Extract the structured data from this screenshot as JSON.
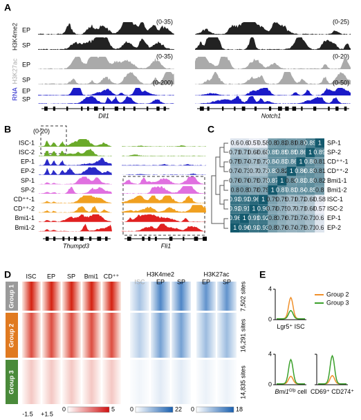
{
  "panels": [
    "A",
    "B",
    "C",
    "D",
    "E"
  ],
  "A": {
    "marks": [
      "H3K4me2",
      "H3K27ac",
      "RNA"
    ],
    "rows": [
      "EP",
      "SP"
    ],
    "ranges_left": [
      "(0-35)",
      "(0-35)",
      "(0-200)"
    ],
    "ranges_right": [
      "(0-25)",
      "(0-20)",
      "(0-50)"
    ],
    "colors": [
      "#222222",
      "#aaaaaa",
      "#1a1ac8"
    ],
    "genes": [
      "Dll1",
      "Notch1"
    ]
  },
  "B": {
    "range": "(0-20)",
    "samples": [
      "ISC-1",
      "ISC-2",
      "EP-1",
      "EP-2",
      "SP-1",
      "SP-2",
      "CD⁺⁺-1",
      "CD⁺⁺-2",
      "Bmi1-1",
      "Bmi1-2"
    ],
    "colors": [
      "#6aaa2a",
      "#6aaa2a",
      "#2a2ac8",
      "#2a2ac8",
      "#e070e0",
      "#e070e0",
      "#f0a020",
      "#f0a020",
      "#e02020",
      "#e02020"
    ],
    "genes": [
      "Thumpd3",
      "Fli1"
    ]
  },
  "C": {
    "labels": [
      "SP-1",
      "SP-2",
      "CD⁺⁺-1",
      "CD⁺⁺-2",
      "Bmi1-1",
      "Bmi1-2",
      "ISC-1",
      "ISC-2",
      "EP-1",
      "EP-2"
    ],
    "matrix": [
      [
        0.6,
        0.6,
        0.57,
        0.58,
        0.8,
        0.82,
        0.81,
        0.81,
        0.89,
        1
      ],
      [
        0.71,
        0.71,
        0.68,
        0.68,
        0.85,
        0.85,
        0.85,
        0.86,
        1,
        0.89
      ],
      [
        0.75,
        0.74,
        0.71,
        0.72,
        0.84,
        0.83,
        0.86,
        1,
        0.86,
        0.81
      ],
      [
        0.74,
        0.73,
        0.7,
        0.71,
        0.83,
        0.82,
        1,
        0.86,
        0.85,
        0.81
      ],
      [
        0.76,
        0.76,
        0.75,
        0.75,
        0.87,
        1,
        0.82,
        0.83,
        0.85,
        0.82
      ],
      [
        0.8,
        0.8,
        0.78,
        0.79,
        1,
        0.87,
        0.83,
        0.84,
        0.85,
        0.8
      ],
      [
        0.93,
        0.93,
        0.96,
        1,
        0.79,
        0.75,
        0.71,
        0.72,
        0.68,
        0.58
      ],
      [
        0.92,
        0.91,
        1,
        0.96,
        0.78,
        0.75,
        0.7,
        0.71,
        0.68,
        0.57
      ],
      [
        0.96,
        1,
        0.91,
        0.92,
        0.8,
        0.76,
        0.73,
        0.74,
        0.71,
        0.6
      ],
      [
        1,
        0.96,
        0.92,
        0.93,
        0.8,
        0.76,
        0.74,
        0.75,
        0.71,
        0.6
      ]
    ]
  },
  "D": {
    "columns": [
      "ISC",
      "EP",
      "SP",
      "Bmi1",
      "CD⁺⁺"
    ],
    "groups": [
      "Group 1",
      "Group 2",
      "Group 3"
    ],
    "group_colors": [
      "#9a9a9a",
      "#e07a20",
      "#4a8a3a"
    ],
    "sites": [
      "7,502 sites",
      "16,291 sites",
      "14,835 sites"
    ],
    "k4": {
      "title": "H3K4me2",
      "columns": [
        "ISC",
        "EP",
        "SP"
      ]
    },
    "k27": {
      "title": "H3K27ac",
      "columns": [
        "EP",
        "SP"
      ]
    },
    "xlabels": [
      "-1.5",
      "+1.5"
    ],
    "bars": [
      [
        0,
        5
      ],
      [
        0,
        22
      ],
      [
        0,
        18
      ]
    ]
  },
  "E": {
    "ylim": [
      0,
      4
    ],
    "yticks": [
      0,
      4
    ],
    "series": [
      {
        "name": "Group 2",
        "color": "#f0902a"
      },
      {
        "name": "Group 3",
        "color": "#3aa02a"
      }
    ],
    "charts": [
      {
        "label": [
          "Lgr5",
          "⁺",
          " ISC"
        ],
        "peaks": [
          2.9,
          1.2
        ]
      },
      {
        "label": [
          "Bmi1",
          "Gfp",
          " cell"
        ],
        "peaks": [
          1.1,
          3.3
        ]
      },
      {
        "label": [
          "CD69",
          "⁺ CD274",
          "⁺"
        ],
        "peaks": [
          1.2,
          3.8
        ]
      }
    ]
  }
}
